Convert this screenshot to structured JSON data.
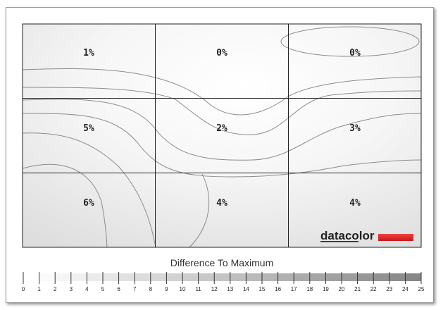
{
  "chart_data": {
    "type": "heatmap",
    "title": "",
    "rows": 3,
    "cols": 3,
    "values": [
      [
        1,
        0,
        0
      ],
      [
        5,
        2,
        3
      ],
      [
        6,
        4,
        4
      ]
    ],
    "value_suffix": "%",
    "legend_title": "Difference To Maximum",
    "scale_min": 0,
    "scale_max": 25,
    "scale_ticks": [
      0,
      1,
      2,
      3,
      4,
      5,
      6,
      7,
      8,
      9,
      10,
      11,
      12,
      13,
      14,
      15,
      16,
      17,
      18,
      19,
      20,
      21,
      22,
      23,
      24,
      25
    ],
    "scale_color_light": "#ffffff",
    "scale_color_dark": "#888888"
  },
  "brand": {
    "name": "datacolor",
    "accent_color": "#e3262a"
  }
}
